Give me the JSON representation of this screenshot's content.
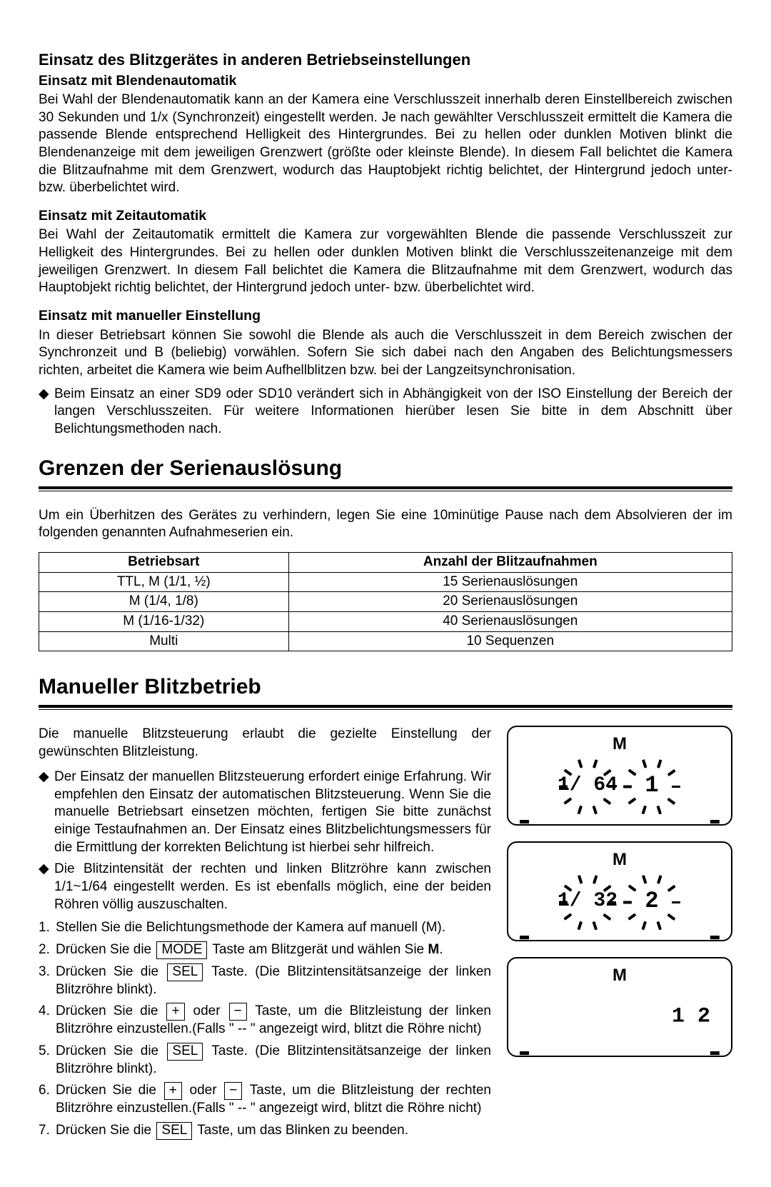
{
  "section1": {
    "heading": "Einsatz des Blitzgerätes in anderen Betriebseinstellungen",
    "sub1_title": "Einsatz mit Blendenautomatik",
    "sub1_text": "Bei Wahl der Blendenautomatik kann an der Kamera eine Verschlusszeit innerhalb deren Einstellbereich zwischen 30 Sekunden und 1/x (Synchronzeit) eingestellt werden. Je nach gewählter Verschlusszeit ermittelt die Kamera die passende Blende entsprechend Helligkeit des Hintergrundes. Bei zu hellen oder dunklen Motiven blinkt die Blendenanzeige mit dem jeweiligen Grenzwert (größte oder kleinste Blende). In diesem Fall belichtet die Kamera die Blitzaufnahme mit dem Grenzwert, wodurch das Hauptobjekt richtig belichtet, der Hintergrund jedoch unter- bzw. überbelichtet wird.",
    "sub2_title": "Einsatz mit Zeitautomatik",
    "sub2_text": "Bei Wahl der Zeitautomatik ermittelt die Kamera zur vorgewählten Blende die passende Verschlusszeit zur Helligkeit des Hintergrundes. Bei zu hellen oder dunklen Motiven blinkt die Verschlusszeitenanzeige mit dem jeweiligen Grenzwert. In diesem Fall belichtet die Kamera die Blitzaufnahme mit dem Grenzwert, wodurch das Hauptobjekt richtig belichtet, der Hintergrund jedoch unter- bzw. überbelichtet wird.",
    "sub3_title": "Einsatz mit manueller Einstellung",
    "sub3_text": "In dieser Betriebsart können Sie sowohl die Blende als auch die Verschlusszeit in dem Bereich zwischen der Synchronzeit und B (beliebig) vorwählen. Sofern Sie sich dabei nach den Angaben des Belichtungsmessers richten, arbeitet die Kamera wie beim Aufhellblitzen bzw. bei der Langzeitsynchronisation.",
    "diamond_note": "Beim Einsatz an einer SD9 oder SD10 verändert sich in Abhängigkeit von der ISO Einstellung der Bereich der langen Verschlusszeiten. Für weitere Informationen hierüber lesen Sie bitte in dem Abschnitt über Belichtungsmethoden nach."
  },
  "section2": {
    "heading": "Grenzen der Serienauslösung",
    "intro": "Um ein Überhitzen des Gerätes zu verhindern, legen Sie eine 10minütige Pause nach dem Absolvieren der im folgenden genannten Aufnahmeserien ein.",
    "table": {
      "columns": [
        "Betriebsart",
        "Anzahl der Blitzaufnahmen"
      ],
      "rows": [
        [
          "TTL, M (1/1, ½)",
          "15 Serienauslösungen"
        ],
        [
          "M (1/4, 1/8)",
          "20 Serienauslösungen"
        ],
        [
          "M (1/16-1/32)",
          "40 Serienauslösungen"
        ],
        [
          "Multi",
          "10 Sequenzen"
        ]
      ]
    }
  },
  "section3": {
    "heading": "Manueller Blitzbetrieb",
    "intro": "Die manuelle Blitzsteuerung erlaubt die gezielte Einstellung der gewünschten Blitzleistung.",
    "bullets": [
      "Der Einsatz der manuellen Blitzsteuerung erfordert einige Erfahrung. Wir empfehlen den Einsatz der automatischen Blitzsteuerung. Wenn Sie die manuelle Betriebsart einsetzen möchten, fertigen Sie bitte zunächst einige Testaufnahmen an. Der Einsatz eines Blitzbelichtungsmessers für die Ermittlung der korrekten Belichtung ist hierbei sehr hilfreich.",
      "Die Blitzintensität der rechten und linken Blitzröhre kann zwischen 1/1~1/64 eingestellt werden. Es ist ebenfalls möglich, eine der beiden Röhren völlig auszuschalten."
    ],
    "steps": {
      "s1": "Stellen Sie die Belichtungsmethode der Kamera auf manuell (M).",
      "s2a": "Drücken Sie die ",
      "s2k": "MODE",
      "s2b": " Taste am Blitzgerät und wählen Sie ",
      "s2bold": "M",
      "s2c": ".",
      "s3a": "Drücken Sie die ",
      "s3k": "SEL",
      "s3b": " Taste. (Die Blitzintensitätsanzeige der linken Blitzröhre blinkt).",
      "s4a": "Drücken Sie die ",
      "s4k1": "+",
      "s4m": " oder ",
      "s4k2": "−",
      "s4b": " Taste, um die Blitzleistung der linken Blitzröhre einzustellen.(Falls \" -- \" angezeigt wird, blitzt die Röhre nicht)",
      "s5a": "Drücken Sie die ",
      "s5k": "SEL",
      "s5b": " Taste. (Die Blitzintensitätsanzeige der linken Blitzröhre blinkt).",
      "s6a": "Drücken Sie die ",
      "s6k1": "+",
      "s6m": " oder ",
      "s6k2": "−",
      "s6b": " Taste, um die Blitzleistung der rechten Blitzröhre einzustellen.(Falls \" -- \" angezeigt wird, blitzt die Röhre nicht)",
      "s7a": "Drücken Sie die ",
      "s7k": "SEL",
      "s7b": " Taste, um das Blinken zu beenden."
    },
    "lcds": [
      {
        "mode": "M",
        "left_value": "1/ 64",
        "right_value": "1",
        "left_fs": 28,
        "right_fs": 32,
        "show_left_sun": true,
        "show_right_sun": true
      },
      {
        "mode": "M",
        "left_value": "1/ 32",
        "right_value": "2",
        "left_fs": 28,
        "right_fs": 32,
        "show_left_sun": true,
        "show_right_sun": true
      },
      {
        "mode": "M",
        "left_value": "",
        "right_value": "1 2",
        "left_fs": 28,
        "right_fs": 30,
        "show_left_sun": false,
        "show_right_sun": false
      }
    ],
    "lcd_style": {
      "border_color": "#000000",
      "ray_count": 10,
      "ray_inner_radius": 28,
      "ray_length": 12
    }
  }
}
